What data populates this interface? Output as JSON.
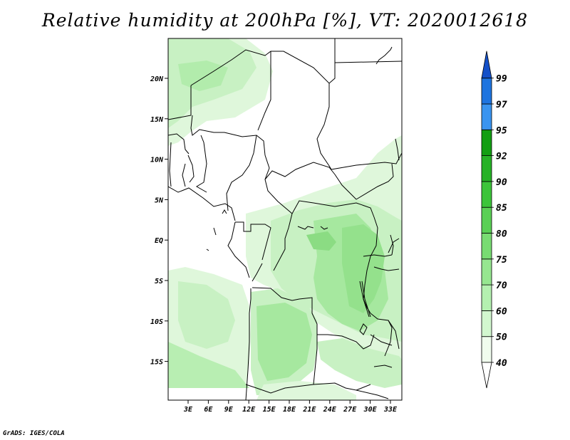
{
  "title": "Relative humidity at 200hPa [%], VT: 2020012618",
  "credit": "GrADS: IGES/COLA",
  "map": {
    "lon_labels": [
      "3E",
      "6E",
      "9E",
      "12E",
      "15E",
      "18E",
      "21E",
      "24E",
      "27E",
      "30E",
      "33E"
    ],
    "lat_labels": [
      "20N",
      "15N",
      "10N",
      "5N",
      "EQ",
      "5S",
      "10S",
      "15S"
    ]
  },
  "colorbar": {
    "levels": [
      "40",
      "50",
      "60",
      "70",
      "75",
      "80",
      "85",
      "90",
      "92",
      "95",
      "97",
      "99"
    ],
    "colors": [
      "#f0fcee",
      "#d2f7cf",
      "#b4f0b0",
      "#96e690",
      "#78dc72",
      "#5ad055",
      "#3cc43a",
      "#26b226",
      "#129e12",
      "#3a94f0",
      "#1e74e0",
      "#1450c8"
    ],
    "low_arrow_color": "#ffffff",
    "high_arrow_color": "#1450c8"
  }
}
